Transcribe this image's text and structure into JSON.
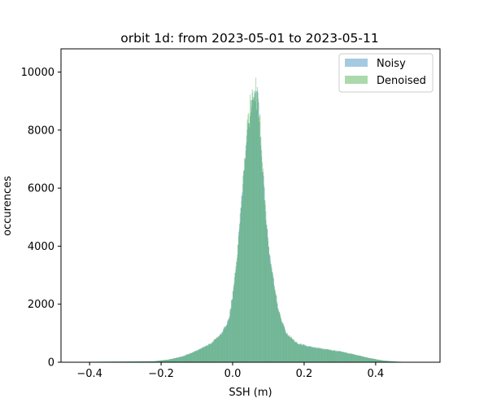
{
  "chart_data": {
    "type": "histogram",
    "title": "orbit 1d: from 2023-05-01 to 2023-05-11",
    "xlabel": "SSH (m)",
    "ylabel": "occurences",
    "xlim": [
      -0.48,
      0.58
    ],
    "ylim": [
      0,
      10800
    ],
    "xticks": [
      -0.4,
      -0.2,
      0.0,
      0.2,
      0.4
    ],
    "xtick_labels": [
      "−0.4",
      "−0.2",
      "0.0",
      "0.2",
      "0.4"
    ],
    "yticks": [
      0,
      2000,
      4000,
      6000,
      8000,
      10000
    ],
    "ytick_labels": [
      "0",
      "2000",
      "4000",
      "6000",
      "8000",
      "10000"
    ],
    "grid": false,
    "legend_position": "top-right",
    "bin_width": 0.002,
    "series": [
      {
        "name": "Noisy",
        "color": "#1f77b4",
        "alpha": 0.4,
        "shape_points": [
          [
            -0.44,
            0
          ],
          [
            -0.4,
            15
          ],
          [
            -0.3,
            25
          ],
          [
            -0.22,
            35
          ],
          [
            -0.18,
            90
          ],
          [
            -0.14,
            200
          ],
          [
            -0.1,
            400
          ],
          [
            -0.06,
            650
          ],
          [
            -0.03,
            1000
          ],
          [
            -0.01,
            1500
          ],
          [
            0.0,
            2300
          ],
          [
            0.01,
            3300
          ],
          [
            0.02,
            4800
          ],
          [
            0.03,
            6400
          ],
          [
            0.04,
            7800
          ],
          [
            0.05,
            8700
          ],
          [
            0.06,
            9100
          ],
          [
            0.065,
            9200
          ],
          [
            0.07,
            9000
          ],
          [
            0.075,
            8400
          ],
          [
            0.08,
            7400
          ],
          [
            0.09,
            5600
          ],
          [
            0.1,
            4100
          ],
          [
            0.11,
            3200
          ],
          [
            0.12,
            2400
          ],
          [
            0.13,
            1700
          ],
          [
            0.15,
            1000
          ],
          [
            0.18,
            650
          ],
          [
            0.22,
            520
          ],
          [
            0.26,
            450
          ],
          [
            0.3,
            370
          ],
          [
            0.34,
            270
          ],
          [
            0.38,
            150
          ],
          [
            0.42,
            60
          ],
          [
            0.46,
            20
          ],
          [
            0.5,
            5
          ],
          [
            0.53,
            0
          ]
        ]
      },
      {
        "name": "Denoised",
        "color": "#2ca02c",
        "alpha": 0.4,
        "shape_points": [
          [
            -0.44,
            0
          ],
          [
            -0.4,
            15
          ],
          [
            -0.3,
            25
          ],
          [
            -0.22,
            35
          ],
          [
            -0.18,
            90
          ],
          [
            -0.14,
            200
          ],
          [
            -0.1,
            400
          ],
          [
            -0.06,
            650
          ],
          [
            -0.03,
            1000
          ],
          [
            -0.01,
            1500
          ],
          [
            0.0,
            2300
          ],
          [
            0.01,
            3300
          ],
          [
            0.02,
            4800
          ],
          [
            0.03,
            6400
          ],
          [
            0.04,
            7900
          ],
          [
            0.05,
            8900
          ],
          [
            0.06,
            9500
          ],
          [
            0.065,
            9800
          ],
          [
            0.07,
            9300
          ],
          [
            0.075,
            8600
          ],
          [
            0.08,
            7500
          ],
          [
            0.09,
            5600
          ],
          [
            0.1,
            4100
          ],
          [
            0.11,
            3200
          ],
          [
            0.12,
            2400
          ],
          [
            0.13,
            1700
          ],
          [
            0.15,
            1000
          ],
          [
            0.18,
            650
          ],
          [
            0.22,
            520
          ],
          [
            0.26,
            450
          ],
          [
            0.3,
            370
          ],
          [
            0.34,
            270
          ],
          [
            0.38,
            150
          ],
          [
            0.42,
            60
          ],
          [
            0.46,
            20
          ],
          [
            0.5,
            5
          ],
          [
            0.53,
            0
          ]
        ]
      }
    ]
  }
}
